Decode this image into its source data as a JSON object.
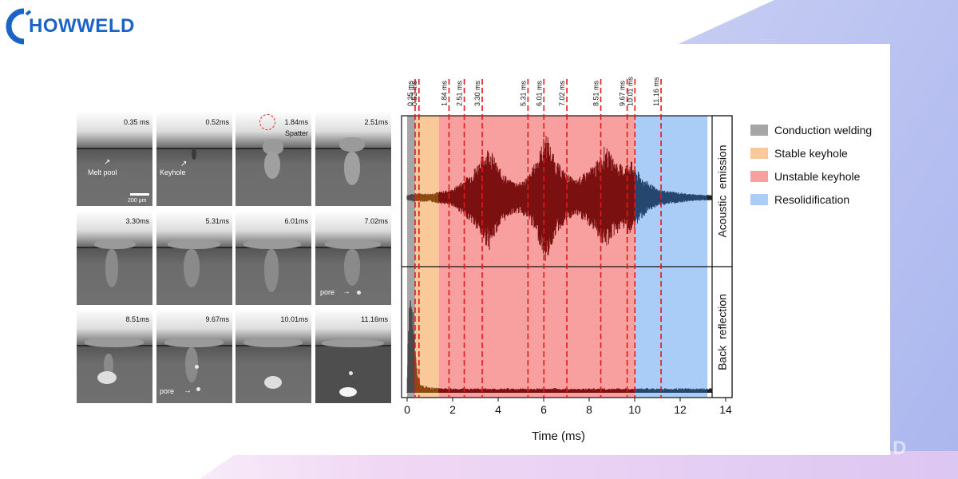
{
  "brand": {
    "name": "HOWWELD",
    "watermark": "HOWWELD",
    "color": "#1a64c8"
  },
  "frames": [
    {
      "time": "0.35 ms",
      "note": "Melt pool",
      "scale": "200 μm"
    },
    {
      "time": "0.52ms",
      "note": "Keyhole"
    },
    {
      "time": "1.84ms",
      "note": "Spatter"
    },
    {
      "time": "2.51ms"
    },
    {
      "time": "3.30ms"
    },
    {
      "time": "5.31ms"
    },
    {
      "time": "6.01ms"
    },
    {
      "time": "7.02ms",
      "note": "pore"
    },
    {
      "time": "8.51ms"
    },
    {
      "time": "9.67ms",
      "note": "pore"
    },
    {
      "time": "10.01ms"
    },
    {
      "time": "11.16ms"
    }
  ],
  "chart_data": {
    "type": "line",
    "xlabel": "Time (ms)",
    "xlim": [
      0,
      14
    ],
    "xticks": [
      0,
      2,
      4,
      6,
      8,
      10,
      12,
      14
    ],
    "panels": [
      {
        "label": "Acoustic emission"
      },
      {
        "label": "Back reflection"
      }
    ],
    "regions": [
      {
        "name": "Conduction welding",
        "start": 0,
        "end": 0.35,
        "color": "#a6a6a6"
      },
      {
        "name": "Stable keyhole",
        "start": 0.35,
        "end": 1.4,
        "color": "#f9c99a"
      },
      {
        "name": "Unstable keyhole",
        "start": 1.4,
        "end": 10.0,
        "color": "#f8a0a0"
      },
      {
        "name": "Resolidification",
        "start": 10.0,
        "end": 13.2,
        "color": "#a9cdf6"
      }
    ],
    "markers": [
      "0.35 ms",
      "0.52 ms",
      "1.84 ms",
      "2.51 ms",
      "3.30 ms",
      "5.31 ms",
      "6.01 ms",
      "7.02 ms",
      "8.51 ms",
      "9.67 ms",
      "10.01 ms",
      "11.16 ms"
    ],
    "marker_values": [
      0.35,
      0.52,
      1.84,
      2.51,
      3.3,
      5.31,
      6.01,
      7.02,
      8.51,
      9.67,
      10.01,
      11.16
    ],
    "acoustic_envelope": {
      "t": [
        0,
        0.3,
        1.0,
        2.0,
        2.8,
        3.2,
        3.6,
        4.0,
        4.5,
        5.0,
        5.4,
        5.8,
        6.1,
        6.5,
        7.0,
        7.4,
        7.8,
        8.3,
        8.7,
        9.1,
        9.5,
        9.8,
        10.3,
        11.0,
        11.8,
        12.5,
        13.2,
        14.0
      ],
      "amplitude": [
        0.04,
        0.06,
        0.06,
        0.12,
        0.35,
        0.55,
        0.75,
        0.45,
        0.25,
        0.22,
        0.35,
        0.65,
        0.95,
        0.55,
        0.35,
        0.25,
        0.35,
        0.5,
        0.75,
        0.55,
        0.45,
        0.55,
        0.3,
        0.12,
        0.08,
        0.05,
        0.04,
        0.04
      ]
    },
    "reflection_profile": {
      "t": [
        0,
        0.1,
        0.2,
        0.3,
        0.35,
        0.45,
        0.6,
        1.0,
        2.0,
        4.0,
        6.0,
        8.0,
        10.0,
        12.0,
        13.2,
        14.0
      ],
      "value": [
        0.0,
        0.95,
        0.8,
        0.6,
        0.35,
        0.15,
        0.06,
        0.04,
        0.03,
        0.03,
        0.03,
        0.03,
        0.03,
        0.03,
        0.03,
        0.03
      ]
    },
    "series_colors": {
      "conduction": "#4a4a4a",
      "stable": "#8a4a10",
      "unstable": "#7a1010",
      "resolidification": "#25466e",
      "post": "#222222"
    }
  }
}
